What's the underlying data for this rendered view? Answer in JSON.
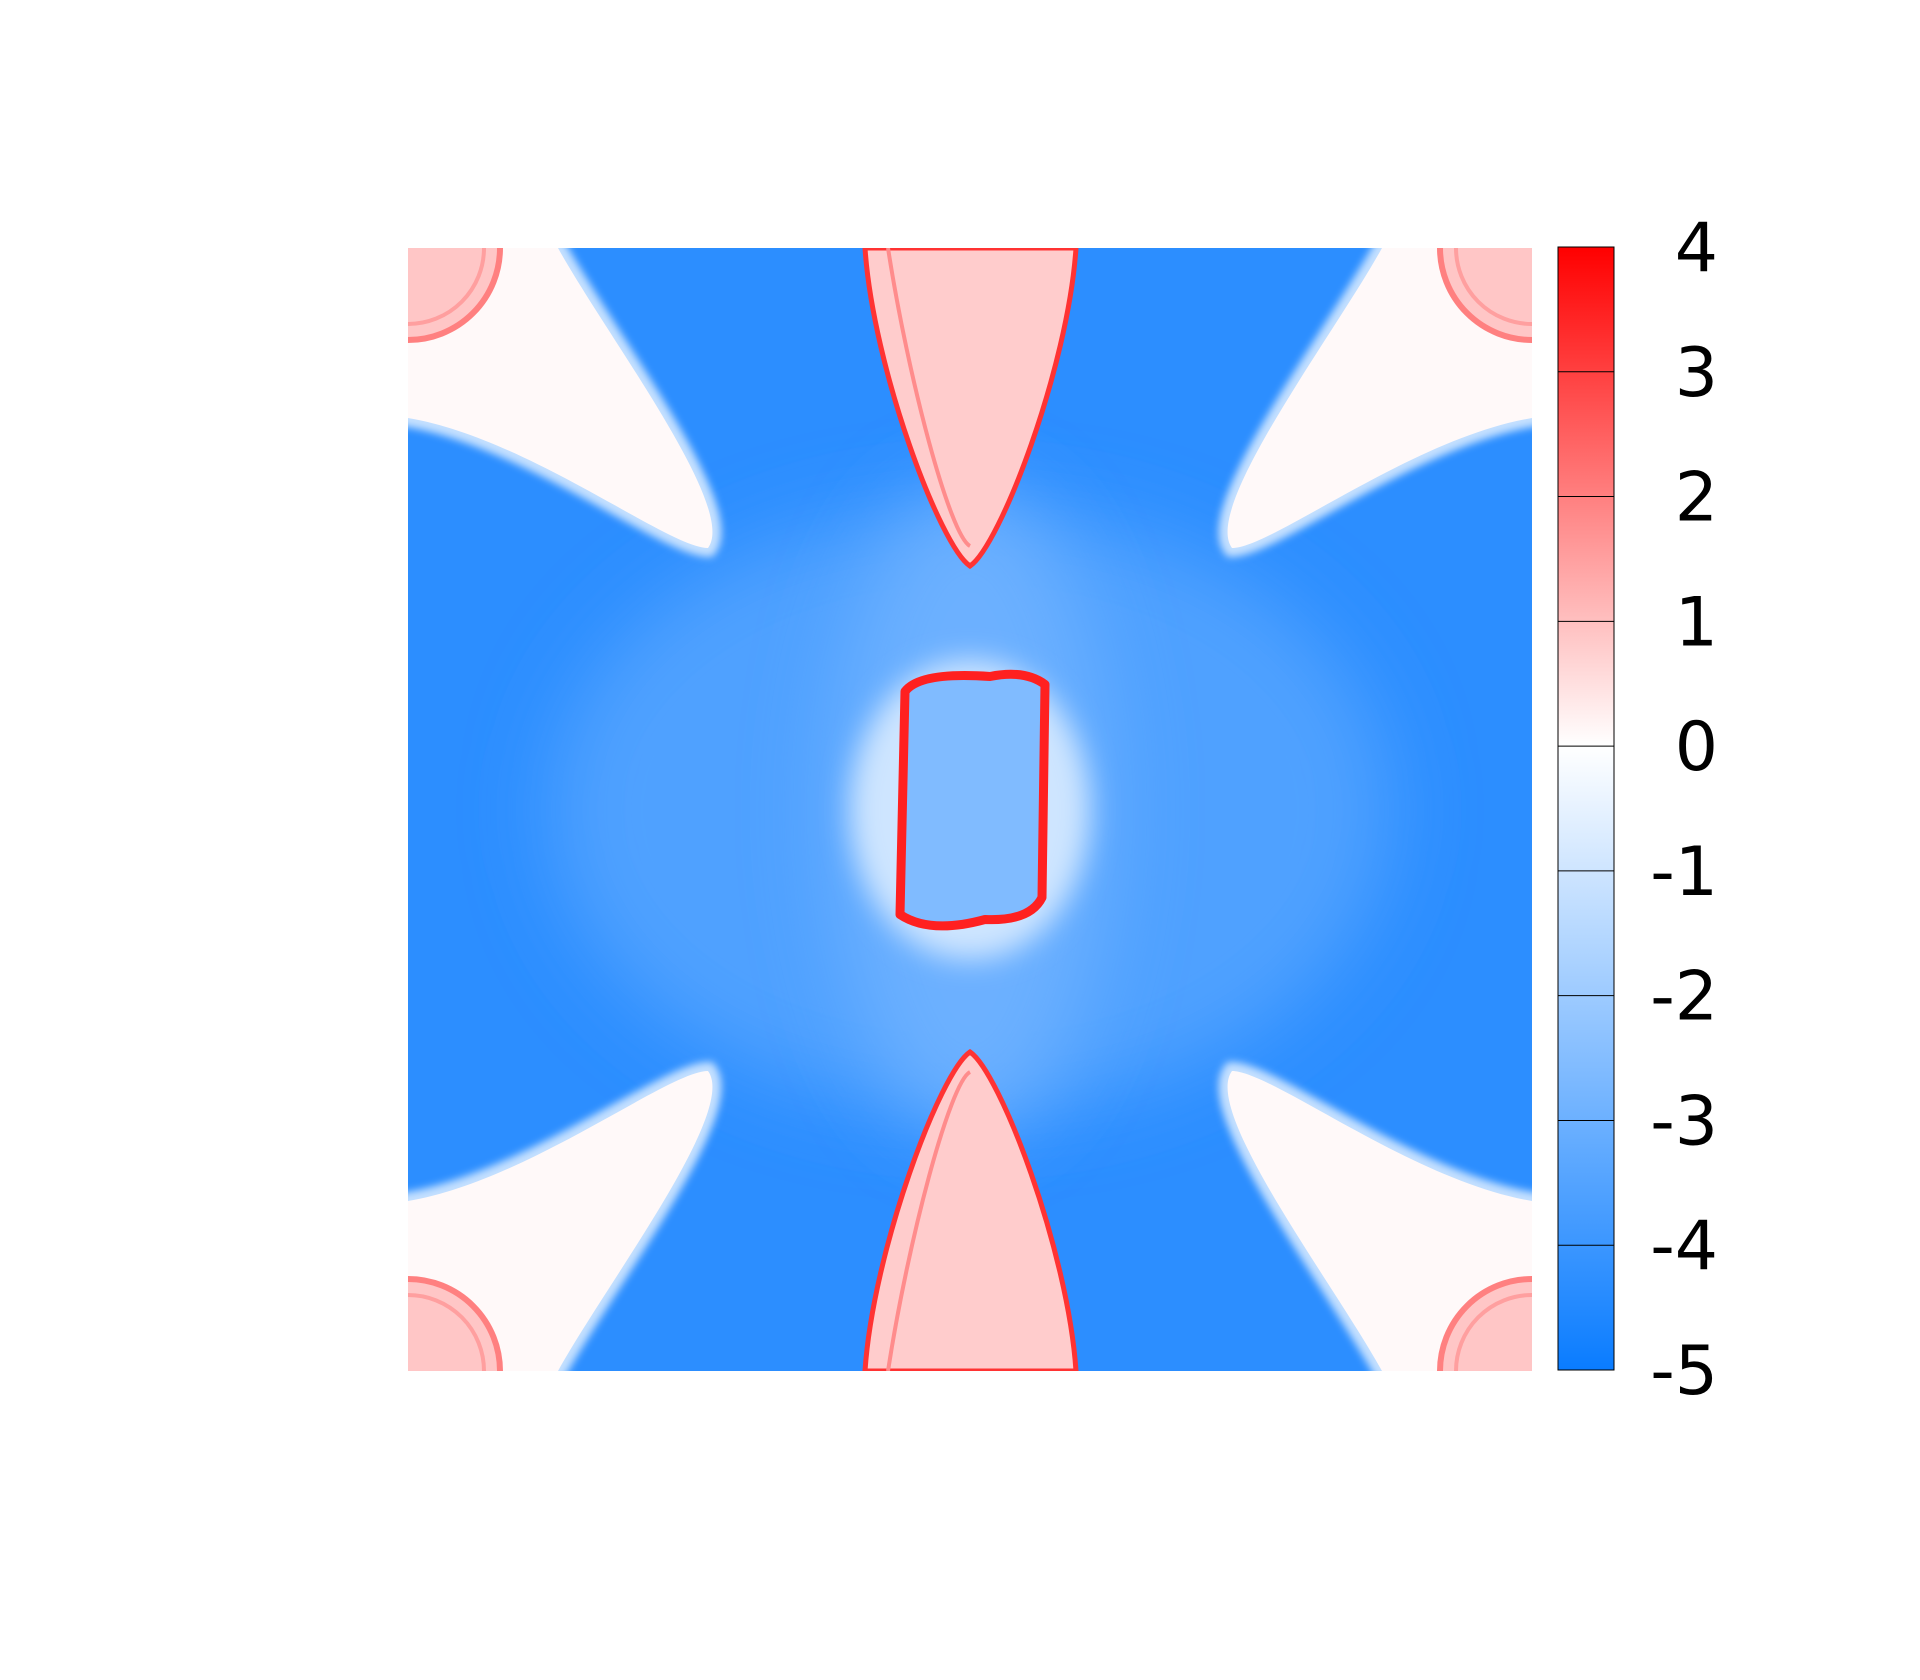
{
  "chart_data": {
    "type": "heatmap",
    "title": "",
    "xlabel": "",
    "ylabel": "",
    "grid": false,
    "colorbar": {
      "position": "right",
      "range": [
        -5,
        4
      ],
      "ticks": [
        -5,
        -4,
        -3,
        -2,
        -1,
        0,
        1,
        2,
        3,
        4
      ],
      "tick_labels": [
        "-5",
        "-4",
        "-3",
        "-2",
        "-1",
        "0",
        "1",
        "2",
        "3",
        "4"
      ],
      "colors": {
        "low": "#0a7cff",
        "mid": "#ffffff",
        "high": "#ff0000"
      }
    },
    "field_description_values": {
      "background": -4.3,
      "center_halo": -1.0,
      "center_ring": 3.5,
      "center_inside": -2.6,
      "top_bottom_lobes_fill": 0.8,
      "top_bottom_lobes_edge": 3.2,
      "corner_lobes_fill": 0.1,
      "corner_lobe_edges": -1.2,
      "corner_arcs": 2.0
    }
  }
}
